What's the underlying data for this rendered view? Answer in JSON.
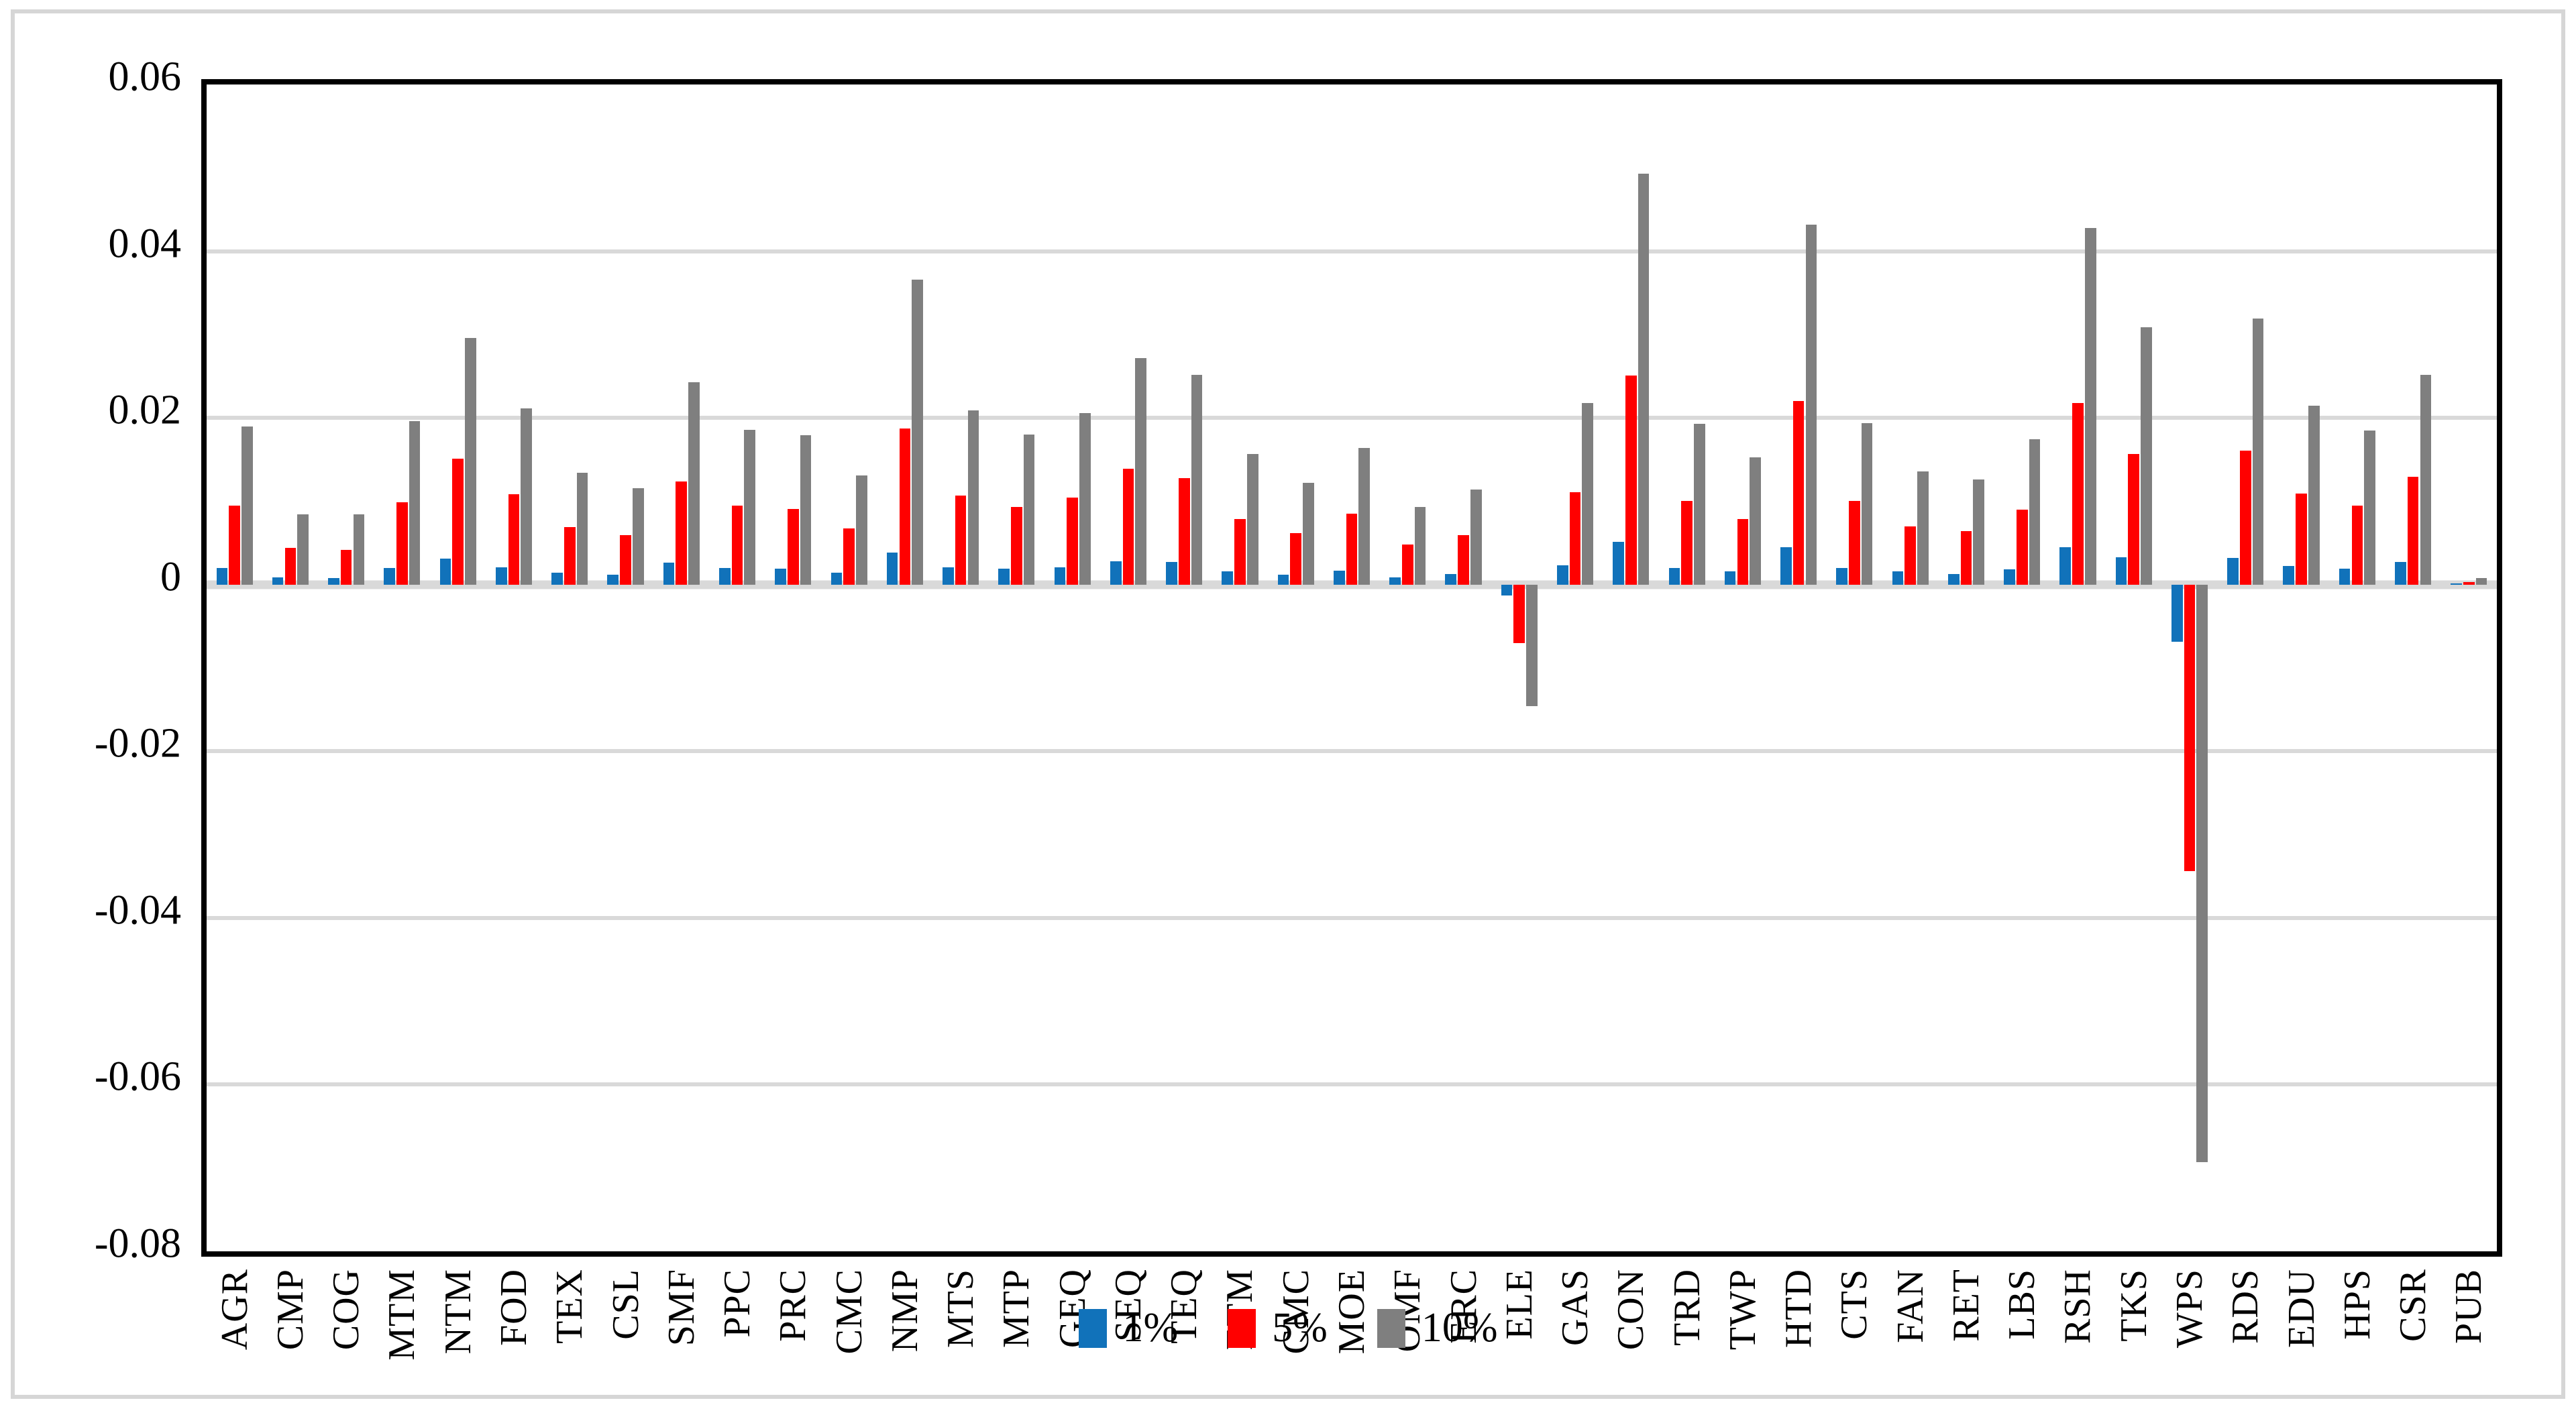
{
  "chart_data": {
    "type": "bar",
    "title": "",
    "xlabel": "",
    "ylabel": "",
    "ylim": [
      -0.08,
      0.06
    ],
    "grid": true,
    "legend_position": "bottom-center",
    "y_ticks": [
      "0.06",
      "0.04",
      "0.02",
      "0",
      "-0.02",
      "-0.04",
      "-0.06",
      "-0.08"
    ],
    "y_tick_values": [
      0.06,
      0.04,
      0.02,
      0,
      -0.02,
      -0.04,
      -0.06,
      -0.08
    ],
    "categories": [
      "AGR",
      "CMP",
      "COG",
      "MTM",
      "NTM",
      "FOD",
      "TEX",
      "CSL",
      "SMF",
      "PPC",
      "PRC",
      "CMC",
      "NMP",
      "MTS",
      "MTP",
      "GEQ",
      "SEQ",
      "TEQ",
      "ETM",
      "CMC",
      "MOE",
      "OMF",
      "ERC",
      "ELE",
      "GAS",
      "CON",
      "TRD",
      "TWP",
      "HTD",
      "CTS",
      "FAN",
      "RET",
      "LBS",
      "RSH",
      "TKS",
      "WPS",
      "RDS",
      "EDU",
      "HPS",
      "CSR",
      "PUB"
    ],
    "series": [
      {
        "name": "1%",
        "color": "#1172ba",
        "values": [
          0.002,
          0.0009,
          0.0008,
          0.002,
          0.0031,
          0.0021,
          0.0014,
          0.0012,
          0.0026,
          0.002,
          0.0019,
          0.0014,
          0.0038,
          0.0021,
          0.0019,
          0.0021,
          0.0028,
          0.0027,
          0.0016,
          0.0012,
          0.0017,
          0.0009,
          0.0013,
          -0.0013,
          0.0023,
          0.0051,
          0.002,
          0.0016,
          0.0045,
          0.002,
          0.0016,
          0.0013,
          0.0018,
          0.0045,
          0.0033,
          -0.0069,
          0.0032,
          0.0022,
          0.0019,
          0.0027,
          0.0001
        ]
      },
      {
        "name": "5%",
        "color": "#ff0000",
        "values": [
          0.0095,
          0.0044,
          0.0042,
          0.0099,
          0.0151,
          0.0108,
          0.0069,
          0.0059,
          0.0124,
          0.0095,
          0.0091,
          0.0067,
          0.0187,
          0.0107,
          0.0093,
          0.0104,
          0.0139,
          0.0128,
          0.0079,
          0.0062,
          0.0085,
          0.0048,
          0.0059,
          -0.007,
          0.0111,
          0.0251,
          0.01,
          0.0079,
          0.022,
          0.01,
          0.007,
          0.0064,
          0.009,
          0.0218,
          0.0157,
          -0.0344,
          0.0161,
          0.0109,
          0.0095,
          0.0129,
          0.0003
        ]
      },
      {
        "name": "10%",
        "color": "#7f7f7f",
        "values": [
          0.019,
          0.0084,
          0.0084,
          0.0196,
          0.0296,
          0.0211,
          0.0134,
          0.0116,
          0.0243,
          0.0186,
          0.0179,
          0.0131,
          0.0366,
          0.0209,
          0.018,
          0.0206,
          0.0272,
          0.0252,
          0.0157,
          0.0122,
          0.0164,
          0.0093,
          0.0114,
          -0.0146,
          0.0218,
          0.0493,
          0.0193,
          0.0153,
          0.0432,
          0.0194,
          0.0136,
          0.0126,
          0.0174,
          0.0428,
          0.0309,
          -0.0693,
          0.0319,
          0.0215,
          0.0185,
          0.0252,
          0.0008
        ]
      }
    ]
  }
}
